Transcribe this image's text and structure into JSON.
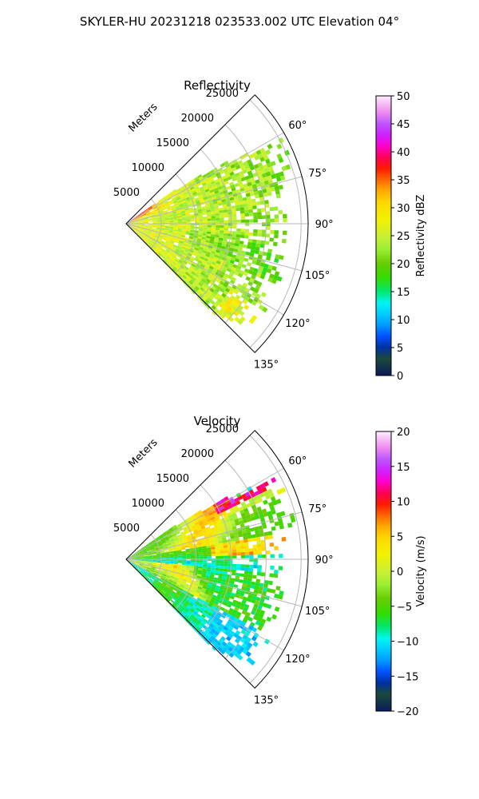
{
  "figure": {
    "title": "SKYLER-HU  20231218  023533.002 UTC Elevation 04°"
  },
  "chart_data": [
    {
      "type": "polar-sector",
      "title": "Reflectivity",
      "radial_label": "Meters",
      "radial_ticks": [
        5000,
        10000,
        15000,
        20000,
        25000
      ],
      "radial_tick_labels": [
        "5000",
        "10000",
        "15000",
        "20000",
        "25000"
      ],
      "theta_ticks": [
        60,
        75,
        90,
        105,
        120,
        135
      ],
      "theta_tick_labels": [
        "60°",
        "75°",
        "90°",
        "105°",
        "120°",
        "135°"
      ],
      "theta_range": [
        45,
        135
      ],
      "r_range": [
        0,
        26000
      ],
      "grid": true,
      "colorbar": {
        "label": "Reflectivity dBZ",
        "range": [
          0,
          50
        ],
        "ticks": [
          0,
          5,
          10,
          15,
          20,
          25,
          30,
          35,
          40,
          45,
          50
        ],
        "tick_labels": [
          "0",
          "5",
          "10",
          "15",
          "20",
          "25",
          "30",
          "35",
          "40",
          "45",
          "50"
        ],
        "stops": [
          [
            0.0,
            "#0a1a5a"
          ],
          [
            0.06,
            "#1a4a3a"
          ],
          [
            0.1,
            "#0030a0"
          ],
          [
            0.14,
            "#0050ff"
          ],
          [
            0.18,
            "#0099ff"
          ],
          [
            0.22,
            "#00ccff"
          ],
          [
            0.26,
            "#00f5f0"
          ],
          [
            0.3,
            "#00e870"
          ],
          [
            0.35,
            "#33dd00"
          ],
          [
            0.4,
            "#66cc00"
          ],
          [
            0.45,
            "#99ee33"
          ],
          [
            0.5,
            "#ccf033"
          ],
          [
            0.56,
            "#f2f200"
          ],
          [
            0.62,
            "#ffd700"
          ],
          [
            0.66,
            "#ffaa00"
          ],
          [
            0.7,
            "#ff6600"
          ],
          [
            0.74,
            "#ff1a00"
          ],
          [
            0.78,
            "#ff0055"
          ],
          [
            0.82,
            "#ff00cc"
          ],
          [
            0.86,
            "#d020ff"
          ],
          [
            0.9,
            "#bb55ff"
          ],
          [
            0.94,
            "#ee88ee"
          ],
          [
            1.0,
            "#ffeeff"
          ]
        ]
      }
    },
    {
      "type": "polar-sector",
      "title": "Velocity",
      "radial_label": "Meters",
      "radial_ticks": [
        5000,
        10000,
        15000,
        20000,
        25000
      ],
      "radial_tick_labels": [
        "5000",
        "10000",
        "15000",
        "20000",
        "25000"
      ],
      "theta_ticks": [
        60,
        75,
        90,
        105,
        120,
        135
      ],
      "theta_tick_labels": [
        "60°",
        "75°",
        "90°",
        "105°",
        "120°",
        "135°"
      ],
      "theta_range": [
        45,
        135
      ],
      "r_range": [
        0,
        26000
      ],
      "grid": true,
      "colorbar": {
        "label": "Velocity (m/s)",
        "range": [
          -20,
          20
        ],
        "ticks": [
          -20,
          -15,
          -10,
          -5,
          0,
          5,
          10,
          15,
          20
        ],
        "tick_labels": [
          "−20",
          "−15",
          "−10",
          "−5",
          "0",
          "5",
          "10",
          "15",
          "20"
        ],
        "stops": [
          [
            0.0,
            "#0a1a5a"
          ],
          [
            0.06,
            "#1a4a3a"
          ],
          [
            0.1,
            "#0030a0"
          ],
          [
            0.14,
            "#0050ff"
          ],
          [
            0.18,
            "#0099ff"
          ],
          [
            0.22,
            "#00ccff"
          ],
          [
            0.26,
            "#00f5f0"
          ],
          [
            0.3,
            "#00e870"
          ],
          [
            0.35,
            "#33dd00"
          ],
          [
            0.4,
            "#66cc00"
          ],
          [
            0.45,
            "#99ee33"
          ],
          [
            0.5,
            "#ccf033"
          ],
          [
            0.56,
            "#f2f200"
          ],
          [
            0.62,
            "#ffd700"
          ],
          [
            0.66,
            "#ffaa00"
          ],
          [
            0.7,
            "#ff6600"
          ],
          [
            0.74,
            "#ff1a00"
          ],
          [
            0.78,
            "#ff0055"
          ],
          [
            0.82,
            "#ff00cc"
          ],
          [
            0.86,
            "#d020ff"
          ],
          [
            0.9,
            "#bb55ff"
          ],
          [
            0.94,
            "#ee88ee"
          ],
          [
            1.0,
            "#ffeeff"
          ]
        ]
      }
    }
  ]
}
